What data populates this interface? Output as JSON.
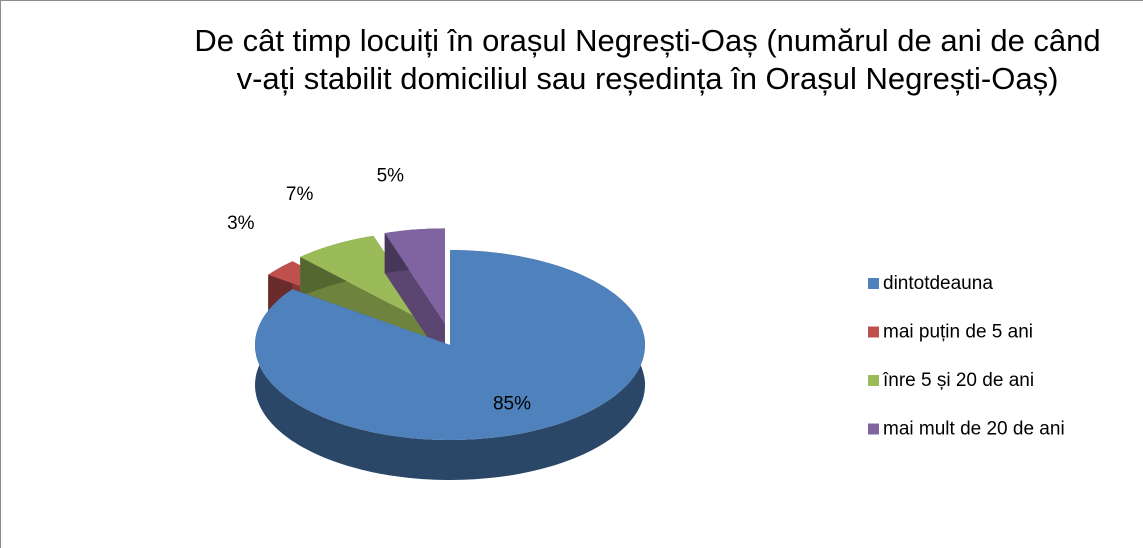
{
  "chart_data": {
    "type": "pie3d",
    "title": "De cât timp locuiți în orașul Negrești-Oaș (numărul de ani de când v-ați stabilit domiciliul sau reședința în Orașul Negrești-Oaș)",
    "categories": [
      "dintotdeauna",
      "mai puțin de 5 ani",
      "înre 5 și 20 de ani",
      "mai mult de 20 de ani"
    ],
    "values": [
      85,
      3,
      7,
      5
    ],
    "value_labels": [
      "85%",
      "3%",
      "7%",
      "5%"
    ],
    "colors": [
      "#4f81bd",
      "#c0504d",
      "#9bbb59",
      "#8064a2"
    ],
    "legend": "right"
  }
}
